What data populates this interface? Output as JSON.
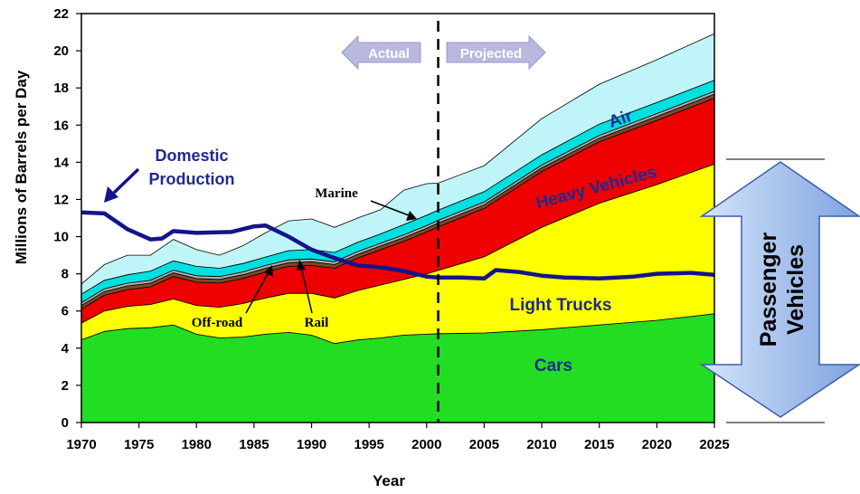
{
  "chart_data": {
    "type": "area",
    "xlabel": "Year",
    "ylabel": "Millions of Barrels per Day",
    "xlim": [
      1970,
      2025
    ],
    "ylim": [
      0,
      22
    ],
    "x_ticks": [
      1970,
      1975,
      1980,
      1985,
      1990,
      1995,
      2000,
      2005,
      2010,
      2015,
      2020,
      2025
    ],
    "y_ticks": [
      0,
      2,
      4,
      6,
      8,
      10,
      12,
      14,
      16,
      18,
      20,
      22
    ],
    "divider_year": 2001,
    "x": [
      1970,
      1972,
      1974,
      1976,
      1978,
      1980,
      1982,
      1984,
      1986,
      1988,
      1990,
      1992,
      1994,
      1996,
      1998,
      2000,
      2001,
      2005,
      2010,
      2015,
      2020,
      2025
    ],
    "stacked_series": [
      {
        "name": "Cars",
        "color": "#22dd22",
        "values": [
          4.45,
          4.9,
          5.05,
          5.1,
          5.25,
          4.75,
          4.55,
          4.6,
          4.75,
          4.85,
          4.7,
          4.25,
          4.45,
          4.55,
          4.7,
          4.75,
          4.78,
          4.82,
          5.0,
          5.25,
          5.5,
          5.85
        ]
      },
      {
        "name": "Light Trucks",
        "color": "#ffff00",
        "values": [
          0.9,
          1.1,
          1.2,
          1.25,
          1.4,
          1.55,
          1.65,
          1.8,
          1.95,
          2.1,
          2.25,
          2.45,
          2.65,
          2.85,
          3.0,
          3.25,
          3.4,
          4.1,
          5.5,
          6.55,
          7.3,
          8.05
        ]
      },
      {
        "name": "Heavy Vehicles",
        "color": "#ee0000",
        "values": [
          0.75,
          0.85,
          0.9,
          0.95,
          1.2,
          1.25,
          1.3,
          1.35,
          1.4,
          1.45,
          1.5,
          1.6,
          1.75,
          1.9,
          2.05,
          2.25,
          2.35,
          2.6,
          3.0,
          3.3,
          3.45,
          3.55
        ]
      },
      {
        "name": "Rail",
        "color": "#7a4a2a",
        "values": [
          0.2,
          0.2,
          0.2,
          0.2,
          0.2,
          0.2,
          0.2,
          0.2,
          0.2,
          0.2,
          0.2,
          0.2,
          0.2,
          0.2,
          0.2,
          0.2,
          0.2,
          0.2,
          0.2,
          0.2,
          0.22,
          0.22
        ]
      },
      {
        "name": "Off-road",
        "color": "#b0b0b0",
        "values": [
          0.15,
          0.15,
          0.15,
          0.15,
          0.15,
          0.15,
          0.15,
          0.15,
          0.15,
          0.15,
          0.15,
          0.15,
          0.15,
          0.15,
          0.15,
          0.15,
          0.15,
          0.15,
          0.15,
          0.15,
          0.15,
          0.15
        ]
      },
      {
        "name": "Marine",
        "color": "#00e0e0",
        "values": [
          0.45,
          0.45,
          0.45,
          0.5,
          0.5,
          0.5,
          0.45,
          0.45,
          0.45,
          0.5,
          0.5,
          0.5,
          0.5,
          0.5,
          0.55,
          0.55,
          0.55,
          0.55,
          0.55,
          0.6,
          0.6,
          0.6
        ]
      },
      {
        "name": "Air",
        "color": "#bff5f8",
        "values": [
          0.55,
          0.85,
          1.05,
          0.85,
          1.15,
          0.9,
          0.7,
          0.95,
          1.3,
          1.6,
          1.65,
          1.35,
          1.3,
          1.3,
          1.85,
          1.7,
          1.45,
          1.4,
          1.95,
          2.15,
          2.3,
          2.5
        ]
      }
    ],
    "line_series": {
      "name": "Domestic Production",
      "color": "#14148c",
      "x": [
        1970,
        1972,
        1974,
        1976,
        1977,
        1978,
        1980,
        1983,
        1985,
        1986,
        1988,
        1990,
        1992,
        1994,
        1996,
        1998,
        2000,
        2001,
        2003,
        2005,
        2006,
        2008,
        2010,
        2012,
        2015,
        2018,
        2020,
        2023,
        2025
      ],
      "values": [
        11.3,
        11.25,
        10.4,
        9.85,
        9.9,
        10.3,
        10.2,
        10.25,
        10.55,
        10.6,
        10.0,
        9.3,
        8.85,
        8.45,
        8.35,
        8.15,
        7.85,
        7.8,
        7.8,
        7.75,
        8.2,
        8.1,
        7.9,
        7.8,
        7.75,
        7.85,
        8.0,
        8.05,
        7.95
      ]
    },
    "labels": {
      "domestic_line1": "Domestic",
      "domestic_line2": "Production",
      "marine": "Marine",
      "off_road": "Off-road",
      "rail": "Rail",
      "air": "Air",
      "heavy": "Heavy Vehicles",
      "light": "Light Trucks",
      "cars": "Cars",
      "actual": "Actual",
      "projected": "Projected",
      "passenger_line1": "Passenger",
      "passenger_line2": "Vehicles"
    }
  }
}
